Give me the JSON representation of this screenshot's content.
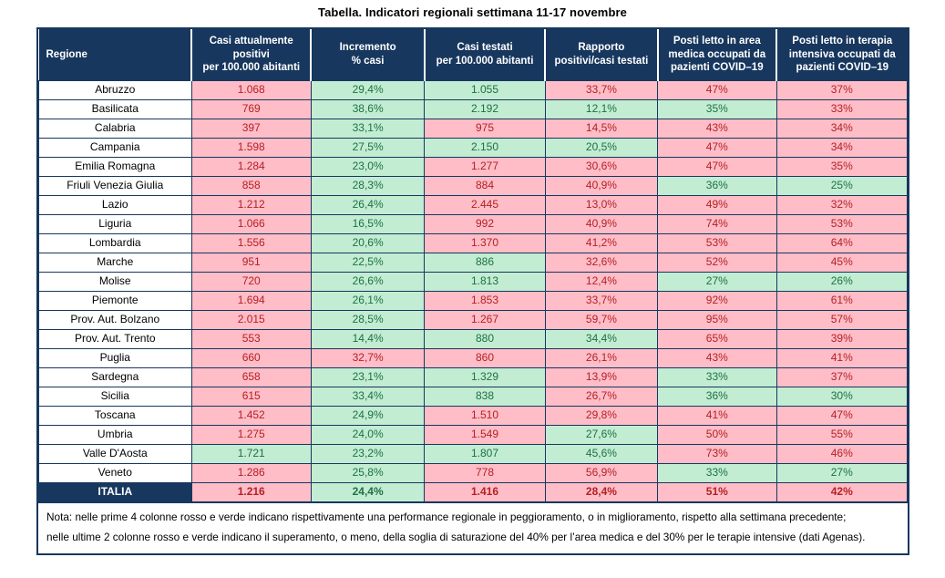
{
  "page_title": "Tabella. Indicatori regionali settimana 11-17 novembre",
  "colors": {
    "header_bg": "#17375E",
    "worsening_bg": "#FFBDC7",
    "worsening_text": "#B42025",
    "improving_bg": "#C2EDD2",
    "improving_text": "#1E7044"
  },
  "chart_data": {
    "type": "table",
    "title": "Tabella. Indicatori regionali settimana 11-17 novembre",
    "columns": [
      "Regione",
      "Casi attualmente\npositivi\nper 100.000 abitanti",
      "Incremento\n% casi",
      "Casi testati\nper 100.000 abitanti",
      "Rapporto\npositivi/casi testati",
      "Posti letto in area\nmedica occupati da\npazienti COVID–19",
      "Posti letto in terapia\nintensiva occupati da\npazienti COVID–19"
    ],
    "color_legend": {
      "bad": "rosso (peggioramento / sopra soglia)",
      "good": "verde (miglioramento / sotto soglia)"
    },
    "rows": [
      {
        "region": "Abruzzo",
        "values": [
          "1.068",
          "29,4%",
          "1.055",
          "33,7%",
          "47%",
          "37%"
        ],
        "flags": [
          "bad",
          "good",
          "good",
          "bad",
          "bad",
          "bad"
        ]
      },
      {
        "region": "Basilicata",
        "values": [
          "769",
          "38,6%",
          "2.192",
          "12,1%",
          "35%",
          "33%"
        ],
        "flags": [
          "bad",
          "good",
          "good",
          "good",
          "good",
          "bad"
        ]
      },
      {
        "region": "Calabria",
        "values": [
          "397",
          "33,1%",
          "975",
          "14,5%",
          "43%",
          "34%"
        ],
        "flags": [
          "bad",
          "good",
          "bad",
          "bad",
          "bad",
          "bad"
        ]
      },
      {
        "region": "Campania",
        "values": [
          "1.598",
          "27,5%",
          "2.150",
          "20,5%",
          "47%",
          "34%"
        ],
        "flags": [
          "bad",
          "good",
          "good",
          "good",
          "bad",
          "bad"
        ]
      },
      {
        "region": "Emilia Romagna",
        "values": [
          "1.284",
          "23,0%",
          "1.277",
          "30,6%",
          "47%",
          "35%"
        ],
        "flags": [
          "bad",
          "good",
          "bad",
          "bad",
          "bad",
          "bad"
        ]
      },
      {
        "region": "Friuli Venezia Giulia",
        "values": [
          "858",
          "28,3%",
          "884",
          "40,9%",
          "36%",
          "25%"
        ],
        "flags": [
          "bad",
          "good",
          "bad",
          "bad",
          "good",
          "good"
        ]
      },
      {
        "region": "Lazio",
        "values": [
          "1.212",
          "26,4%",
          "2.445",
          "13,0%",
          "49%",
          "32%"
        ],
        "flags": [
          "bad",
          "good",
          "bad",
          "bad",
          "bad",
          "bad"
        ]
      },
      {
        "region": "Liguria",
        "values": [
          "1.066",
          "16,5%",
          "992",
          "40,9%",
          "74%",
          "53%"
        ],
        "flags": [
          "bad",
          "good",
          "bad",
          "bad",
          "bad",
          "bad"
        ]
      },
      {
        "region": "Lombardia",
        "values": [
          "1.556",
          "20,6%",
          "1.370",
          "41,2%",
          "53%",
          "64%"
        ],
        "flags": [
          "bad",
          "good",
          "bad",
          "bad",
          "bad",
          "bad"
        ]
      },
      {
        "region": "Marche",
        "values": [
          "951",
          "22,5%",
          "886",
          "32,6%",
          "52%",
          "45%"
        ],
        "flags": [
          "bad",
          "good",
          "good",
          "bad",
          "bad",
          "bad"
        ]
      },
      {
        "region": "Molise",
        "values": [
          "720",
          "26,6%",
          "1.813",
          "12,4%",
          "27%",
          "26%"
        ],
        "flags": [
          "bad",
          "good",
          "good",
          "bad",
          "good",
          "good"
        ]
      },
      {
        "region": "Piemonte",
        "values": [
          "1.694",
          "26,1%",
          "1.853",
          "33,7%",
          "92%",
          "61%"
        ],
        "flags": [
          "bad",
          "good",
          "bad",
          "bad",
          "bad",
          "bad"
        ]
      },
      {
        "region": "Prov. Aut. Bolzano",
        "values": [
          "2.015",
          "28,5%",
          "1.267",
          "59,7%",
          "95%",
          "57%"
        ],
        "flags": [
          "bad",
          "good",
          "bad",
          "bad",
          "bad",
          "bad"
        ]
      },
      {
        "region": "Prov. Aut. Trento",
        "values": [
          "553",
          "14,4%",
          "880",
          "34,4%",
          "65%",
          "39%"
        ],
        "flags": [
          "bad",
          "good",
          "good",
          "good",
          "bad",
          "bad"
        ]
      },
      {
        "region": "Puglia",
        "values": [
          "660",
          "32,7%",
          "860",
          "26,1%",
          "43%",
          "41%"
        ],
        "flags": [
          "bad",
          "bad",
          "bad",
          "bad",
          "bad",
          "bad"
        ]
      },
      {
        "region": "Sardegna",
        "values": [
          "658",
          "23,1%",
          "1.329",
          "13,9%",
          "33%",
          "37%"
        ],
        "flags": [
          "bad",
          "good",
          "good",
          "bad",
          "good",
          "bad"
        ]
      },
      {
        "region": "Sicilia",
        "values": [
          "615",
          "33,4%",
          "838",
          "26,7%",
          "36%",
          "30%"
        ],
        "flags": [
          "bad",
          "good",
          "good",
          "bad",
          "good",
          "good"
        ]
      },
      {
        "region": "Toscana",
        "values": [
          "1.452",
          "24,9%",
          "1.510",
          "29,8%",
          "41%",
          "47%"
        ],
        "flags": [
          "bad",
          "good",
          "bad",
          "bad",
          "bad",
          "bad"
        ]
      },
      {
        "region": "Umbria",
        "values": [
          "1.275",
          "24,0%",
          "1.549",
          "27,6%",
          "50%",
          "55%"
        ],
        "flags": [
          "bad",
          "good",
          "bad",
          "good",
          "bad",
          "bad"
        ]
      },
      {
        "region": "Valle D'Aosta",
        "values": [
          "1.721",
          "23,2%",
          "1.807",
          "45,6%",
          "73%",
          "46%"
        ],
        "flags": [
          "good",
          "good",
          "good",
          "good",
          "bad",
          "bad"
        ]
      },
      {
        "region": "Veneto",
        "values": [
          "1.286",
          "25,8%",
          "778",
          "56,9%",
          "33%",
          "27%"
        ],
        "flags": [
          "bad",
          "good",
          "bad",
          "bad",
          "good",
          "good"
        ]
      }
    ],
    "total": {
      "region": "ITALIA",
      "values": [
        "1.216",
        "24,4%",
        "1.416",
        "28,4%",
        "51%",
        "42%"
      ],
      "flags": [
        "bad",
        "good",
        "bad",
        "bad",
        "bad",
        "bad"
      ]
    },
    "note": "Nota: nelle prime 4 colonne rosso e verde indicano rispettivamente una performance regionale in peggioramento, o in miglioramento, rispetto alla settimana precedente;\nnelle ultime 2 colonne rosso e verde indicano il superamento, o meno, della soglia di saturazione del 40% per l’area medica e del 30% per le terapie intensive (dati Agenas)."
  }
}
